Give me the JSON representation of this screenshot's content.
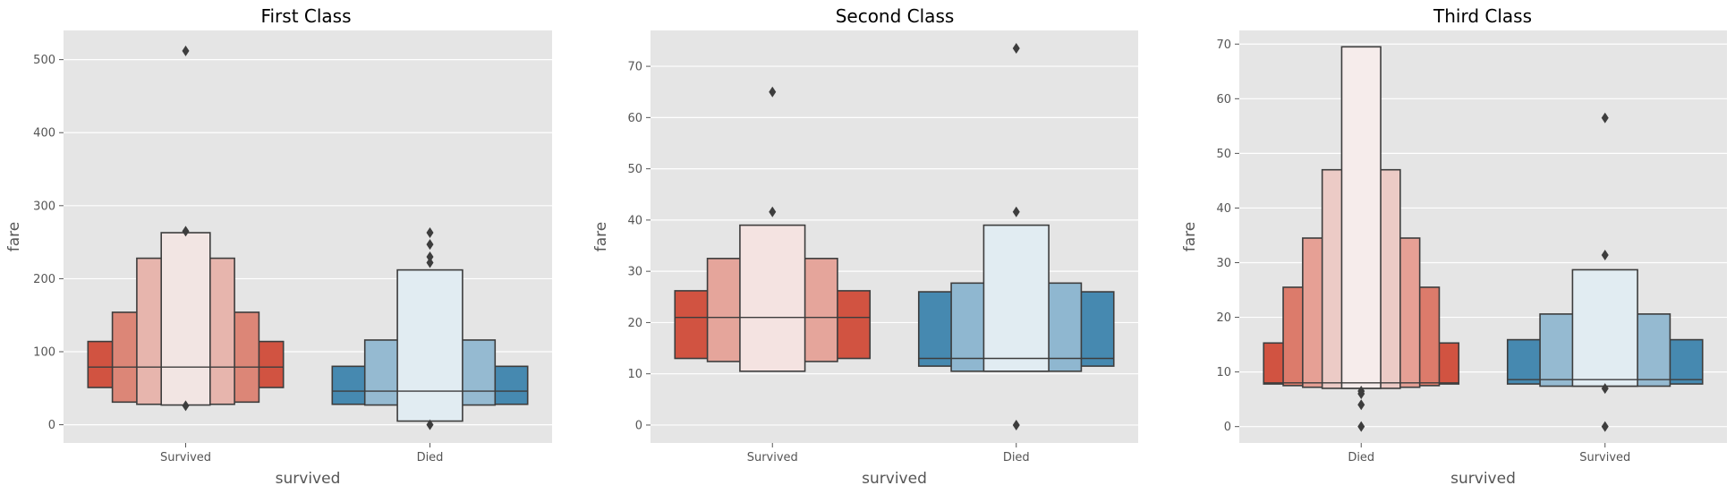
{
  "chart_data": [
    {
      "type": "boxen",
      "title": "First Class",
      "xlabel": "survived",
      "ylabel": "fare",
      "ylim": [
        -25,
        540
      ],
      "yticks": [
        0,
        100,
        200,
        300,
        400,
        500
      ],
      "categories": [
        "Survived",
        "Died"
      ],
      "groups": [
        {
          "name": "Survived",
          "color": "#d6513e",
          "median": 79,
          "boxes": [
            {
              "low": 51,
              "high": 114,
              "color": "#d15341"
            },
            {
              "low": 31,
              "high": 154,
              "color": "#dc8677"
            },
            {
              "low": 28,
              "high": 228,
              "color": "#e7b5ad"
            },
            {
              "low": 27,
              "high": 263,
              "color": "#f2e5e3"
            }
          ],
          "outliers": [
            512,
            265,
            26
          ]
        },
        {
          "name": "Died",
          "color": "#3b85b1",
          "median": 46,
          "boxes": [
            {
              "low": 28,
              "high": 80,
              "color": "#4689b0"
            },
            {
              "low": 27,
              "high": 116,
              "color": "#95bad1"
            },
            {
              "low": 5,
              "high": 212,
              "color": "#e1ecf2"
            }
          ],
          "outliers": [
            263,
            247,
            230,
            222,
            0
          ]
        }
      ]
    },
    {
      "type": "boxen",
      "title": "Second Class",
      "xlabel": "survived",
      "ylabel": "fare",
      "ylim": [
        -3.5,
        77
      ],
      "yticks": [
        0,
        10,
        20,
        30,
        40,
        50,
        60,
        70
      ],
      "categories": [
        "Survived",
        "Died"
      ],
      "groups": [
        {
          "name": "Survived",
          "color": "#d6513e",
          "median": 21,
          "boxes": [
            {
              "low": 13,
              "high": 26.2,
              "color": "#d15341"
            },
            {
              "low": 12.4,
              "high": 32.5,
              "color": "#e5a59b"
            },
            {
              "low": 10.5,
              "high": 39,
              "color": "#f4e3e1"
            }
          ],
          "outliers": [
            65,
            41.6
          ]
        },
        {
          "name": "Died",
          "color": "#3b85b1",
          "median": 13,
          "boxes": [
            {
              "low": 11.5,
              "high": 26,
              "color": "#4689b0"
            },
            {
              "low": 10.5,
              "high": 27.7,
              "color": "#8fb7d0"
            },
            {
              "low": 10.5,
              "high": 39,
              "color": "#e1ecf2"
            }
          ],
          "outliers": [
            73.5,
            41.6,
            0
          ]
        }
      ]
    },
    {
      "type": "boxen",
      "title": "Third Class",
      "xlabel": "survived",
      "ylabel": "fare",
      "ylim": [
        -3,
        72.5
      ],
      "yticks": [
        0,
        10,
        20,
        30,
        40,
        50,
        60,
        70
      ],
      "categories": [
        "Died",
        "Survived"
      ],
      "groups": [
        {
          "name": "Died",
          "color": "#d6513e",
          "median": 8,
          "boxes": [
            {
              "low": 7.8,
              "high": 15.3,
              "color": "#d15341"
            },
            {
              "low": 7.5,
              "high": 25.5,
              "color": "#dc7b6b"
            },
            {
              "low": 7.2,
              "high": 34.5,
              "color": "#e6a095"
            },
            {
              "low": 7.0,
              "high": 47,
              "color": "#eccbc6"
            },
            {
              "low": 7.0,
              "high": 69.5,
              "color": "#f6eceb"
            }
          ],
          "outliers": [
            6.5,
            6.0,
            4.0,
            0
          ]
        },
        {
          "name": "Survived",
          "color": "#3b85b1",
          "median": 8.6,
          "boxes": [
            {
              "low": 7.8,
              "high": 15.9,
              "color": "#4689b0"
            },
            {
              "low": 7.4,
              "high": 20.6,
              "color": "#95bad1"
            },
            {
              "low": 7.4,
              "high": 28.7,
              "color": "#e1ecf2"
            }
          ],
          "outliers": [
            56.5,
            31.4,
            6.97,
            0
          ]
        }
      ]
    }
  ]
}
